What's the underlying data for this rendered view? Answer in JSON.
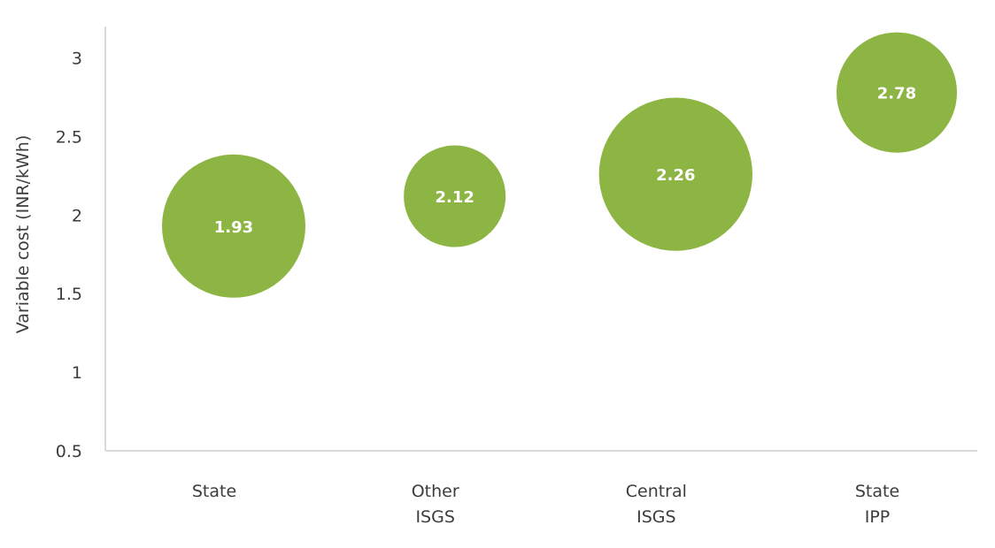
{
  "chart_data": {
    "type": "scatter",
    "subtype": "bubble",
    "title": "",
    "xlabel": "",
    "ylabel": "Variable cost (INR/kWh)",
    "ylim": [
      0.5,
      3.2
    ],
    "yticks": [
      "0.5",
      "1",
      "1.5",
      "2",
      "2.5",
      "3"
    ],
    "grid": false,
    "legend": "none",
    "bubble_color": "#8db543",
    "categories": [
      [
        "State"
      ],
      [
        "Other",
        "ISGS"
      ],
      [
        "Central",
        "ISGS"
      ],
      [
        "State",
        "IPP"
      ]
    ],
    "values": [
      1.93,
      2.12,
      2.26,
      2.78
    ],
    "labels": [
      "1.93",
      "2.12",
      "2.26",
      "2.78"
    ],
    "relative_size": [
      1.0,
      0.71,
      1.07,
      0.84
    ]
  }
}
